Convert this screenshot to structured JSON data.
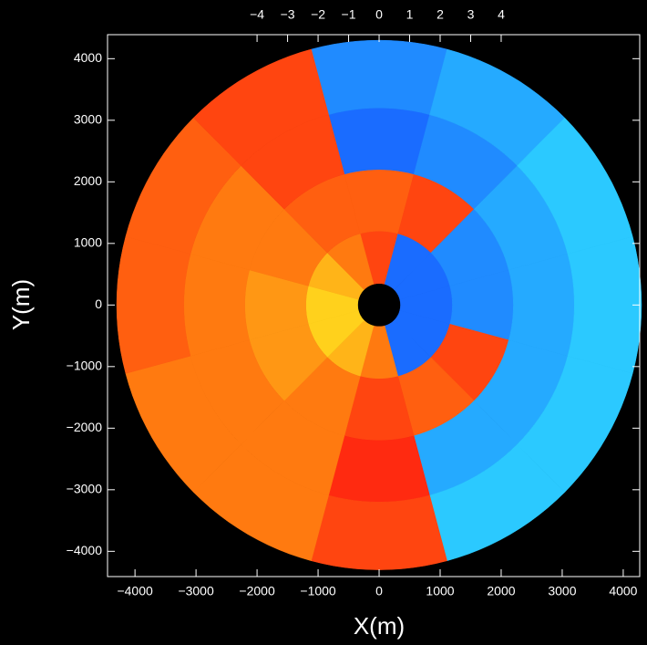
{
  "chart_data": {
    "type": "polar-field",
    "xlabel": "X(m)",
    "ylabel": "Y(m)",
    "xlim": [
      -4450,
      4270
    ],
    "ylim": [
      -4410,
      4390
    ],
    "xticks": [
      {
        "value": -4000,
        "label": "−4000"
      },
      {
        "value": -3000,
        "label": "−3000"
      },
      {
        "value": -2000,
        "label": "−2000"
      },
      {
        "value": -1000,
        "label": "−1000"
      },
      0,
      1000,
      2000,
      3000,
      4000
    ],
    "yticks": [
      {
        "value": -4000,
        "label": "−4000"
      },
      {
        "value": -3000,
        "label": "−3000"
      },
      {
        "value": -2000,
        "label": "−2000"
      },
      {
        "value": -1000,
        "label": "−1000"
      },
      0,
      1000,
      2000,
      3000,
      4000
    ],
    "x2lim": [
      -8.9,
      8.54
    ],
    "x2ticks": [
      {
        "value": -4,
        "label": "−4"
      },
      {
        "value": -3,
        "label": "−3"
      },
      {
        "value": -2,
        "label": "−2"
      },
      {
        "value": -1,
        "label": "−1"
      },
      0,
      1,
      2,
      3,
      4
    ],
    "colorscale": [
      {
        "value": -4,
        "color": "#30e8ff"
      },
      {
        "value": -2,
        "color": "#1a6cff"
      },
      {
        "value": -0.5,
        "color": "#1030e0"
      },
      {
        "value": 0.5,
        "color": "#ff2a10"
      },
      {
        "value": 2,
        "color": "#ff7a10"
      },
      {
        "value": 4,
        "color": "#ffee20"
      }
    ],
    "azimuths": [
      0,
      30,
      60,
      90,
      120,
      150,
      180,
      210,
      240,
      270,
      300,
      330
    ],
    "range_edges": [
      350,
      1200,
      2200,
      3200,
      4300
    ],
    "values": [
      [
        1,
        -2,
        -2,
        -2,
        -2,
        -2,
        2,
        3,
        3.5,
        3.5,
        3,
        2
      ],
      [
        1.5,
        1,
        -2.5,
        -2.5,
        1,
        1.5,
        1,
        2,
        2.5,
        2.5,
        2,
        1.5
      ],
      [
        -2,
        -2.5,
        -3,
        -3,
        -3,
        -3,
        0.5,
        2,
        2,
        2,
        2,
        1
      ],
      [
        -2.5,
        -3,
        -3.5,
        -3.5,
        -3.5,
        -3.5,
        1,
        2,
        2,
        1.5,
        1.5,
        1
      ]
    ]
  }
}
